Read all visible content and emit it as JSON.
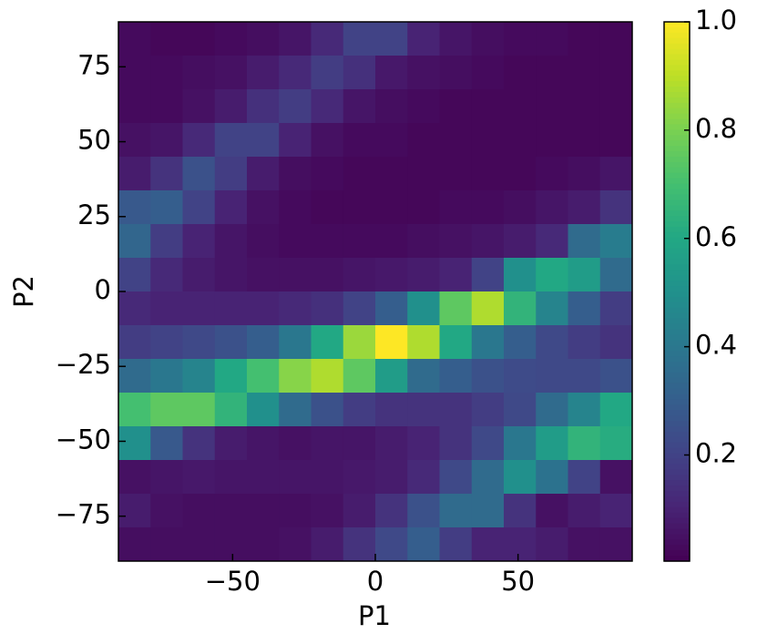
{
  "chart_data": {
    "type": "heatmap",
    "xlabel": "P1",
    "ylabel": "P2",
    "xlim": [
      -90,
      90
    ],
    "ylim": [
      -90,
      90
    ],
    "xticks": [
      {
        "value": -50,
        "label": "−50"
      },
      0,
      50
    ],
    "yticks": [
      {
        "value": -75,
        "label": "−75"
      },
      {
        "value": -50,
        "label": "−50"
      },
      {
        "value": -25,
        "label": "−25"
      },
      0,
      25,
      50,
      75
    ],
    "colormap": "viridis",
    "clim": [
      0.004,
      1
    ],
    "colorbar_ticks": [
      0.2,
      0.4,
      0.6,
      0.8,
      {
        "value": 1,
        "label": "1.0"
      }
    ],
    "values": [
      [
        0.03,
        0.02,
        0.02,
        0.03,
        0.04,
        0.06,
        0.12,
        0.2,
        0.2,
        0.1,
        0.06,
        0.04,
        0.03,
        0.03,
        0.02,
        0.02
      ],
      [
        0.03,
        0.03,
        0.04,
        0.05,
        0.08,
        0.12,
        0.18,
        0.14,
        0.07,
        0.05,
        0.04,
        0.03,
        0.02,
        0.02,
        0.02,
        0.02
      ],
      [
        0.03,
        0.03,
        0.05,
        0.08,
        0.14,
        0.18,
        0.12,
        0.06,
        0.04,
        0.03,
        0.02,
        0.02,
        0.02,
        0.02,
        0.02,
        0.02
      ],
      [
        0.05,
        0.06,
        0.12,
        0.2,
        0.2,
        0.1,
        0.05,
        0.03,
        0.03,
        0.02,
        0.02,
        0.02,
        0.02,
        0.02,
        0.02,
        0.02
      ],
      [
        0.08,
        0.15,
        0.25,
        0.18,
        0.08,
        0.04,
        0.03,
        0.02,
        0.02,
        0.02,
        0.02,
        0.02,
        0.02,
        0.03,
        0.04,
        0.06
      ],
      [
        0.28,
        0.3,
        0.2,
        0.1,
        0.05,
        0.03,
        0.02,
        0.02,
        0.02,
        0.02,
        0.03,
        0.03,
        0.04,
        0.06,
        0.08,
        0.15
      ],
      [
        0.33,
        0.18,
        0.1,
        0.06,
        0.04,
        0.03,
        0.03,
        0.03,
        0.03,
        0.04,
        0.05,
        0.06,
        0.08,
        0.12,
        0.35,
        0.42
      ],
      [
        0.2,
        0.12,
        0.08,
        0.06,
        0.05,
        0.05,
        0.05,
        0.06,
        0.07,
        0.08,
        0.1,
        0.2,
        0.5,
        0.6,
        0.55,
        0.35
      ],
      [
        0.12,
        0.1,
        0.1,
        0.1,
        0.1,
        0.12,
        0.14,
        0.2,
        0.3,
        0.5,
        0.75,
        0.88,
        0.65,
        0.45,
        0.3,
        0.18
      ],
      [
        0.18,
        0.2,
        0.22,
        0.25,
        0.3,
        0.4,
        0.6,
        0.85,
        1.0,
        0.88,
        0.6,
        0.4,
        0.3,
        0.22,
        0.18,
        0.15
      ],
      [
        0.35,
        0.4,
        0.45,
        0.6,
        0.7,
        0.82,
        0.88,
        0.75,
        0.55,
        0.35,
        0.3,
        0.25,
        0.23,
        0.22,
        0.22,
        0.25
      ],
      [
        0.7,
        0.75,
        0.75,
        0.65,
        0.5,
        0.35,
        0.25,
        0.18,
        0.15,
        0.15,
        0.15,
        0.18,
        0.22,
        0.35,
        0.45,
        0.6
      ],
      [
        0.5,
        0.28,
        0.15,
        0.08,
        0.06,
        0.05,
        0.06,
        0.06,
        0.08,
        0.1,
        0.15,
        0.22,
        0.4,
        0.55,
        0.65,
        0.62
      ],
      [
        0.05,
        0.06,
        0.07,
        0.06,
        0.06,
        0.06,
        0.06,
        0.07,
        0.08,
        0.12,
        0.22,
        0.35,
        0.5,
        0.38,
        0.2,
        0.05
      ],
      [
        0.08,
        0.05,
        0.04,
        0.04,
        0.04,
        0.04,
        0.05,
        0.08,
        0.15,
        0.25,
        0.35,
        0.35,
        0.15,
        0.05,
        0.08,
        0.1
      ],
      [
        0.04,
        0.04,
        0.04,
        0.04,
        0.04,
        0.05,
        0.08,
        0.15,
        0.22,
        0.3,
        0.18,
        0.1,
        0.1,
        0.08,
        0.05,
        0.05
      ]
    ]
  }
}
